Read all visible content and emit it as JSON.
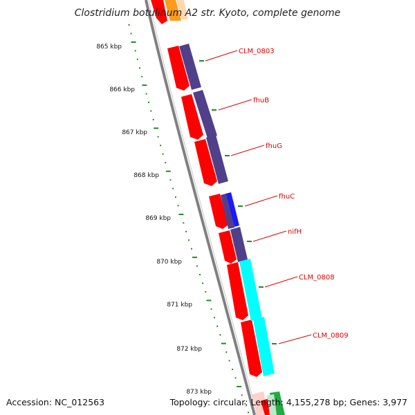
{
  "title": "Clostridium botulinum A2 str. Kyoto, complete genome",
  "footer": {
    "accession": "Accession: NC_012563",
    "summary": "Topology: circular; Length: 4,155,278 bp; Genes: 3,977"
  },
  "ticks": [
    "865 kbp",
    "866 kbp",
    "867 kbp",
    "868 kbp",
    "869 kbp",
    "870 kbp",
    "871 kbp",
    "872 kbp",
    "873 kbp"
  ],
  "gene_labels": [
    "CLM_0803",
    "fhuB",
    "fhuG",
    "fhuC",
    "nifH",
    "CLM_0808",
    "CLM_0809"
  ],
  "colors": {
    "backbone": "#808080",
    "ticks": "#1e8c1e",
    "cds": "#ff0000",
    "cds_dark": "#b80000",
    "cog_purple": "#50408a",
    "cog_blue": "#1a1aff",
    "cog_cyan": "#00ffff",
    "label": "#e00000"
  }
}
